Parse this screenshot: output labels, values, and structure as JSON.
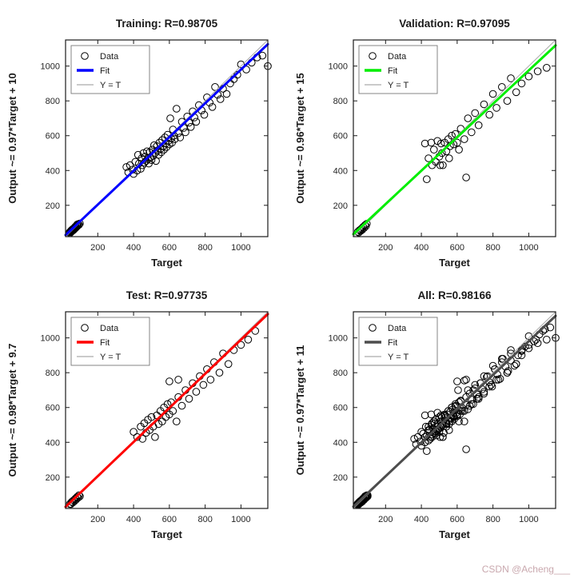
{
  "watermark": "CSDN @Acheng___",
  "chart_data": [
    {
      "type": "scatter",
      "title": "Training: R=0.98705",
      "xlabel": "Target",
      "ylabel": "Output ~= 0.97*Target + 10",
      "legend": [
        "Data",
        "Fit",
        "Y = T"
      ],
      "fit_color": "#0000ff",
      "yt_color": "#aaaaaa",
      "marker_color": "#000000",
      "fit": {
        "slope": 0.97,
        "intercept": 10
      },
      "range": [
        20,
        1150
      ],
      "ticks": [
        200,
        400,
        600,
        800,
        1000
      ],
      "points": [
        [
          42,
          45
        ],
        [
          45,
          40
        ],
        [
          48,
          50
        ],
        [
          50,
          46
        ],
        [
          52,
          55
        ],
        [
          55,
          50
        ],
        [
          57,
          60
        ],
        [
          60,
          55
        ],
        [
          62,
          64
        ],
        [
          64,
          58
        ],
        [
          66,
          68
        ],
        [
          68,
          62
        ],
        [
          70,
          72
        ],
        [
          72,
          66
        ],
        [
          74,
          76
        ],
        [
          76,
          70
        ],
        [
          78,
          80
        ],
        [
          80,
          74
        ],
        [
          83,
          85
        ],
        [
          86,
          80
        ],
        [
          90,
          92
        ],
        [
          95,
          88
        ],
        [
          100,
          96
        ],
        [
          60,
          63
        ],
        [
          65,
          60
        ],
        [
          70,
          68
        ],
        [
          75,
          78
        ],
        [
          55,
          58
        ],
        [
          50,
          53
        ],
        [
          85,
          90
        ],
        [
          360,
          420
        ],
        [
          370,
          390
        ],
        [
          380,
          430
        ],
        [
          395,
          405
        ],
        [
          400,
          380
        ],
        [
          410,
          450
        ],
        [
          420,
          400
        ],
        [
          425,
          490
        ],
        [
          430,
          440
        ],
        [
          440,
          410
        ],
        [
          445,
          470
        ],
        [
          450,
          430
        ],
        [
          455,
          500
        ],
        [
          460,
          445
        ],
        [
          465,
          480
        ],
        [
          470,
          455
        ],
        [
          475,
          510
        ],
        [
          480,
          465
        ],
        [
          485,
          440
        ],
        [
          490,
          505
        ],
        [
          495,
          475
        ],
        [
          500,
          460
        ],
        [
          505,
          520
        ],
        [
          510,
          485
        ],
        [
          515,
          545
        ],
        [
          520,
          500
        ],
        [
          525,
          455
        ],
        [
          530,
          540
        ],
        [
          535,
          515
        ],
        [
          540,
          490
        ],
        [
          545,
          560
        ],
        [
          550,
          525
        ],
        [
          555,
          505
        ],
        [
          560,
          575
        ],
        [
          565,
          540
        ],
        [
          570,
          520
        ],
        [
          575,
          590
        ],
        [
          580,
          555
        ],
        [
          585,
          535
        ],
        [
          590,
          605
        ],
        [
          595,
          570
        ],
        [
          600,
          550
        ],
        [
          605,
          700
        ],
        [
          610,
          585
        ],
        [
          615,
          560
        ],
        [
          620,
          635
        ],
        [
          625,
          600
        ],
        [
          630,
          580
        ],
        [
          640,
          755
        ],
        [
          650,
          615
        ],
        [
          660,
          590
        ],
        [
          670,
          680
        ],
        [
          680,
          645
        ],
        [
          690,
          620
        ],
        [
          700,
          710
        ],
        [
          710,
          675
        ],
        [
          720,
          650
        ],
        [
          730,
          740
        ],
        [
          740,
          705
        ],
        [
          750,
          680
        ],
        [
          765,
          775
        ],
        [
          780,
          745
        ],
        [
          795,
          720
        ],
        [
          810,
          820
        ],
        [
          825,
          790
        ],
        [
          840,
          765
        ],
        [
          855,
          880
        ],
        [
          870,
          835
        ],
        [
          885,
          810
        ],
        [
          900,
          870
        ],
        [
          920,
          840
        ],
        [
          940,
          900
        ],
        [
          960,
          925
        ],
        [
          980,
          950
        ],
        [
          1000,
          1010
        ],
        [
          1030,
          980
        ],
        [
          1060,
          1020
        ],
        [
          1090,
          1050
        ],
        [
          1120,
          1060
        ],
        [
          1150,
          1000
        ]
      ]
    },
    {
      "type": "scatter",
      "title": "Validation: R=0.97095",
      "xlabel": "Target",
      "ylabel": "Output ~= 0.96*Target + 15",
      "legend": [
        "Data",
        "Fit",
        "Y = T"
      ],
      "fit_color": "#00ee00",
      "yt_color": "#aaaaaa",
      "marker_color": "#000000",
      "fit": {
        "slope": 0.96,
        "intercept": 15
      },
      "range": [
        20,
        1150
      ],
      "ticks": [
        200,
        400,
        600,
        800,
        1000
      ],
      "points": [
        [
          45,
          48
        ],
        [
          50,
          44
        ],
        [
          55,
          57
        ],
        [
          60,
          52
        ],
        [
          65,
          66
        ],
        [
          70,
          60
        ],
        [
          75,
          76
        ],
        [
          80,
          70
        ],
        [
          85,
          86
        ],
        [
          90,
          80
        ],
        [
          95,
          94
        ],
        [
          62,
          58
        ],
        [
          420,
          555
        ],
        [
          440,
          470
        ],
        [
          455,
          560
        ],
        [
          460,
          430
        ],
        [
          470,
          520
        ],
        [
          480,
          450
        ],
        [
          490,
          570
        ],
        [
          500,
          480
        ],
        [
          505,
          430
        ],
        [
          510,
          555
        ],
        [
          515,
          500
        ],
        [
          520,
          430
        ],
        [
          530,
          560
        ],
        [
          540,
          510
        ],
        [
          550,
          580
        ],
        [
          555,
          470
        ],
        [
          560,
          540
        ],
        [
          570,
          600
        ],
        [
          580,
          550
        ],
        [
          590,
          610
        ],
        [
          600,
          560
        ],
        [
          610,
          520
        ],
        [
          620,
          640
        ],
        [
          640,
          580
        ],
        [
          660,
          700
        ],
        [
          680,
          620
        ],
        [
          700,
          730
        ],
        [
          720,
          660
        ],
        [
          750,
          780
        ],
        [
          780,
          720
        ],
        [
          800,
          840
        ],
        [
          820,
          760
        ],
        [
          850,
          880
        ],
        [
          880,
          800
        ],
        [
          900,
          930
        ],
        [
          930,
          850
        ],
        [
          960,
          900
        ],
        [
          1000,
          940
        ],
        [
          1050,
          970
        ],
        [
          1100,
          990
        ],
        [
          430,
          350
        ],
        [
          650,
          360
        ]
      ]
    },
    {
      "type": "scatter",
      "title": "Test: R=0.97735",
      "xlabel": "Target",
      "ylabel": "Output ~= 0.98*Target + 9.7",
      "legend": [
        "Data",
        "Fit",
        "Y = T"
      ],
      "fit_color": "#ff0000",
      "yt_color": "#aaaaaa",
      "marker_color": "#000000",
      "fit": {
        "slope": 0.98,
        "intercept": 9.7
      },
      "range": [
        20,
        1150
      ],
      "ticks": [
        200,
        400,
        600,
        800,
        1000
      ],
      "points": [
        [
          44,
          46
        ],
        [
          50,
          45
        ],
        [
          55,
          58
        ],
        [
          60,
          54
        ],
        [
          65,
          67
        ],
        [
          70,
          62
        ],
        [
          75,
          77
        ],
        [
          80,
          72
        ],
        [
          85,
          87
        ],
        [
          90,
          82
        ],
        [
          95,
          96
        ],
        [
          100,
          90
        ],
        [
          400,
          460
        ],
        [
          420,
          430
        ],
        [
          440,
          490
        ],
        [
          450,
          420
        ],
        [
          460,
          510
        ],
        [
          470,
          455
        ],
        [
          480,
          530
        ],
        [
          490,
          470
        ],
        [
          500,
          545
        ],
        [
          510,
          490
        ],
        [
          520,
          430
        ],
        [
          530,
          555
        ],
        [
          540,
          505
        ],
        [
          550,
          580
        ],
        [
          560,
          520
        ],
        [
          570,
          600
        ],
        [
          580,
          545
        ],
        [
          590,
          620
        ],
        [
          600,
          560
        ],
        [
          610,
          630
        ],
        [
          620,
          580
        ],
        [
          640,
          520
        ],
        [
          650,
          660
        ],
        [
          670,
          610
        ],
        [
          690,
          700
        ],
        [
          710,
          650
        ],
        [
          730,
          740
        ],
        [
          750,
          690
        ],
        [
          770,
          780
        ],
        [
          790,
          730
        ],
        [
          810,
          820
        ],
        [
          830,
          760
        ],
        [
          850,
          860
        ],
        [
          880,
          800
        ],
        [
          900,
          910
        ],
        [
          930,
          850
        ],
        [
          960,
          930
        ],
        [
          1000,
          960
        ],
        [
          1040,
          990
        ],
        [
          1080,
          1040
        ],
        [
          600,
          750
        ],
        [
          650,
          760
        ]
      ]
    },
    {
      "type": "scatter",
      "title": "All: R=0.98166",
      "xlabel": "Target",
      "ylabel": "Output ~= 0.97*Target + 11",
      "legend": [
        "Data",
        "Fit",
        "Y = T"
      ],
      "fit_color": "#4d4d4d",
      "yt_color": "#aaaaaa",
      "marker_color": "#000000",
      "fit": {
        "slope": 0.97,
        "intercept": 11
      },
      "range": [
        20,
        1150
      ],
      "ticks": [
        200,
        400,
        600,
        800,
        1000
      ],
      "combine": [
        0,
        1,
        2
      ],
      "points": []
    }
  ]
}
